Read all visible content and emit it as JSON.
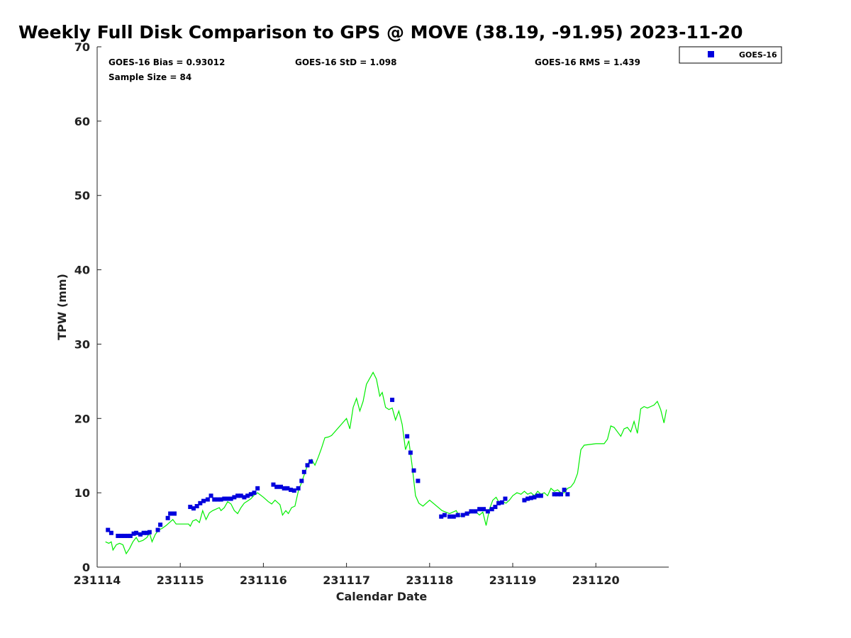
{
  "chart_data": {
    "type": "scatter",
    "title": "Weekly Full Disk Comparison to GPS @ MOVE (38.19, -91.95) 2023-11-20",
    "xlabel": "Calendar Date",
    "ylabel": "TPW (mm)",
    "xlim": [
      231114,
      231120.85
    ],
    "ylim": [
      0,
      70
    ],
    "x_ticks": [
      231114,
      231115,
      231116,
      231117,
      231118,
      231119,
      231120
    ],
    "x_tick_labels": [
      "231114",
      "231115",
      "231116",
      "231117",
      "231118",
      "231119",
      "231120"
    ],
    "y_ticks": [
      0,
      10,
      20,
      30,
      40,
      50,
      60,
      70
    ],
    "y_tick_labels": [
      "0",
      "10",
      "20",
      "30",
      "40",
      "50",
      "60",
      "70"
    ],
    "stats": {
      "bias": "GOES-16 Bias = 0.93012",
      "std": "GOES-16 StD = 1.098",
      "rms": "GOES-16 RMS = 1.439",
      "sample": "Sample Size = 84"
    },
    "legend_position": "top-right",
    "colors": {
      "goes16": "#0000dd",
      "gps": "#00ee00"
    },
    "series": [
      {
        "name": "GOES-16",
        "marker": "square",
        "color": "#0000dd",
        "points": [
          [
            231114.13,
            5.0
          ],
          [
            231114.17,
            4.6
          ],
          [
            231114.25,
            4.2
          ],
          [
            231114.29,
            4.2
          ],
          [
            231114.33,
            4.2
          ],
          [
            231114.37,
            4.2
          ],
          [
            231114.4,
            4.2
          ],
          [
            231114.44,
            4.5
          ],
          [
            231114.47,
            4.6
          ],
          [
            231114.52,
            4.4
          ],
          [
            231114.56,
            4.6
          ],
          [
            231114.6,
            4.6
          ],
          [
            231114.63,
            4.7
          ],
          [
            231114.73,
            5.0
          ],
          [
            231114.76,
            5.7
          ],
          [
            231114.85,
            6.6
          ],
          [
            231114.88,
            7.2
          ],
          [
            231114.93,
            7.2
          ],
          [
            231115.12,
            8.1
          ],
          [
            231115.16,
            7.9
          ],
          [
            231115.2,
            8.2
          ],
          [
            231115.24,
            8.6
          ],
          [
            231115.28,
            8.9
          ],
          [
            231115.33,
            9.1
          ],
          [
            231115.37,
            9.6
          ],
          [
            231115.41,
            9.1
          ],
          [
            231115.45,
            9.1
          ],
          [
            231115.49,
            9.1
          ],
          [
            231115.53,
            9.2
          ],
          [
            231115.57,
            9.2
          ],
          [
            231115.61,
            9.2
          ],
          [
            231115.65,
            9.4
          ],
          [
            231115.69,
            9.6
          ],
          [
            231115.73,
            9.6
          ],
          [
            231115.77,
            9.4
          ],
          [
            231115.81,
            9.6
          ],
          [
            231115.85,
            9.8
          ],
          [
            231115.89,
            10.0
          ],
          [
            231115.93,
            10.6
          ],
          [
            231116.12,
            11.1
          ],
          [
            231116.16,
            10.8
          ],
          [
            231116.21,
            10.8
          ],
          [
            231116.25,
            10.6
          ],
          [
            231116.29,
            10.6
          ],
          [
            231116.33,
            10.4
          ],
          [
            231116.37,
            10.3
          ],
          [
            231116.42,
            10.6
          ],
          [
            231116.46,
            11.6
          ],
          [
            231116.49,
            12.8
          ],
          [
            231116.53,
            13.7
          ],
          [
            231116.57,
            14.2
          ],
          [
            231117.55,
            22.5
          ],
          [
            231117.73,
            17.6
          ],
          [
            231117.77,
            15.4
          ],
          [
            231117.81,
            13.0
          ],
          [
            231117.86,
            11.6
          ],
          [
            231118.14,
            6.8
          ],
          [
            231118.18,
            7.0
          ],
          [
            231118.24,
            6.8
          ],
          [
            231118.29,
            6.8
          ],
          [
            231118.34,
            7.0
          ],
          [
            231118.4,
            7.0
          ],
          [
            231118.45,
            7.2
          ],
          [
            231118.5,
            7.5
          ],
          [
            231118.55,
            7.5
          ],
          [
            231118.6,
            7.8
          ],
          [
            231118.65,
            7.8
          ],
          [
            231118.7,
            7.5
          ],
          [
            231118.75,
            7.8
          ],
          [
            231118.79,
            8.1
          ],
          [
            231118.83,
            8.6
          ],
          [
            231118.87,
            8.7
          ],
          [
            231118.91,
            9.2
          ],
          [
            231119.14,
            9.0
          ],
          [
            231119.18,
            9.2
          ],
          [
            231119.22,
            9.3
          ],
          [
            231119.26,
            9.4
          ],
          [
            231119.3,
            9.6
          ],
          [
            231119.34,
            9.6
          ],
          [
            231119.5,
            9.8
          ],
          [
            231119.54,
            9.8
          ],
          [
            231119.58,
            9.8
          ],
          [
            231119.62,
            10.4
          ],
          [
            231119.66,
            9.8
          ]
        ]
      },
      {
        "marker": "line",
        "color": "#00ee00",
        "points": [
          [
            231114.1,
            3.4
          ],
          [
            231114.14,
            3.2
          ],
          [
            231114.17,
            3.4
          ],
          [
            231114.19,
            2.3
          ],
          [
            231114.23,
            3.0
          ],
          [
            231114.27,
            3.2
          ],
          [
            231114.31,
            3.0
          ],
          [
            231114.35,
            1.8
          ],
          [
            231114.39,
            2.5
          ],
          [
            231114.43,
            3.4
          ],
          [
            231114.47,
            4.0
          ],
          [
            231114.5,
            3.4
          ],
          [
            231114.55,
            3.6
          ],
          [
            231114.6,
            4.0
          ],
          [
            231114.63,
            4.6
          ],
          [
            231114.66,
            3.4
          ],
          [
            231114.7,
            4.4
          ],
          [
            231114.74,
            5.0
          ],
          [
            231114.78,
            5.2
          ],
          [
            231114.83,
            5.6
          ],
          [
            231114.87,
            6.0
          ],
          [
            231114.91,
            6.4
          ],
          [
            231114.95,
            5.8
          ],
          [
            231115.0,
            5.8
          ],
          [
            231115.06,
            5.8
          ],
          [
            231115.1,
            5.8
          ],
          [
            231115.12,
            5.5
          ],
          [
            231115.15,
            6.2
          ],
          [
            231115.19,
            6.4
          ],
          [
            231115.23,
            6.0
          ],
          [
            231115.27,
            7.6
          ],
          [
            231115.31,
            6.4
          ],
          [
            231115.35,
            7.3
          ],
          [
            231115.39,
            7.6
          ],
          [
            231115.43,
            7.8
          ],
          [
            231115.47,
            8.0
          ],
          [
            231115.49,
            7.6
          ],
          [
            231115.53,
            8.0
          ],
          [
            231115.57,
            8.8
          ],
          [
            231115.61,
            8.5
          ],
          [
            231115.65,
            7.6
          ],
          [
            231115.69,
            7.2
          ],
          [
            231115.73,
            8.0
          ],
          [
            231115.77,
            8.6
          ],
          [
            231115.81,
            8.9
          ],
          [
            231115.85,
            9.2
          ],
          [
            231115.89,
            9.7
          ],
          [
            231115.93,
            10.0
          ],
          [
            231116.0,
            9.4
          ],
          [
            231116.06,
            8.8
          ],
          [
            231116.1,
            8.5
          ],
          [
            231116.14,
            9.0
          ],
          [
            231116.2,
            8.4
          ],
          [
            231116.23,
            7.0
          ],
          [
            231116.27,
            7.6
          ],
          [
            231116.3,
            7.2
          ],
          [
            231116.34,
            8.0
          ],
          [
            231116.38,
            8.2
          ],
          [
            231116.42,
            10.2
          ],
          [
            231116.46,
            11.4
          ],
          [
            231116.5,
            12.7
          ],
          [
            231116.54,
            14.0
          ],
          [
            231116.58,
            14.5
          ],
          [
            231116.62,
            13.7
          ],
          [
            231116.66,
            14.8
          ],
          [
            231116.7,
            16.0
          ],
          [
            231116.74,
            17.4
          ],
          [
            231116.78,
            17.5
          ],
          [
            231116.82,
            17.7
          ],
          [
            231117.0,
            20.0
          ],
          [
            231117.04,
            18.6
          ],
          [
            231117.08,
            21.5
          ],
          [
            231117.12,
            22.7
          ],
          [
            231117.16,
            21.0
          ],
          [
            231117.2,
            22.3
          ],
          [
            231117.24,
            24.6
          ],
          [
            231117.27,
            25.2
          ],
          [
            231117.32,
            26.2
          ],
          [
            231117.36,
            25.3
          ],
          [
            231117.4,
            23.0
          ],
          [
            231117.43,
            23.5
          ],
          [
            231117.47,
            21.5
          ],
          [
            231117.51,
            21.2
          ],
          [
            231117.55,
            21.4
          ],
          [
            231117.59,
            19.8
          ],
          [
            231117.63,
            21.0
          ],
          [
            231117.67,
            19.2
          ],
          [
            231117.71,
            15.8
          ],
          [
            231117.75,
            17.0
          ],
          [
            231117.79,
            13.6
          ],
          [
            231117.83,
            9.6
          ],
          [
            231117.87,
            8.6
          ],
          [
            231117.92,
            8.2
          ],
          [
            231118.0,
            9.0
          ],
          [
            231118.15,
            7.6
          ],
          [
            231118.24,
            7.2
          ],
          [
            231118.32,
            7.6
          ],
          [
            231118.36,
            6.8
          ],
          [
            231118.4,
            7.0
          ],
          [
            231118.44,
            7.4
          ],
          [
            231118.48,
            7.2
          ],
          [
            231118.52,
            7.6
          ],
          [
            231118.56,
            7.4
          ],
          [
            231118.6,
            7.0
          ],
          [
            231118.64,
            7.4
          ],
          [
            231118.68,
            5.6
          ],
          [
            231118.72,
            7.8
          ],
          [
            231118.76,
            9.0
          ],
          [
            231118.8,
            9.4
          ],
          [
            231118.84,
            8.6
          ],
          [
            231118.88,
            8.8
          ],
          [
            231118.92,
            8.6
          ],
          [
            231118.96,
            9.0
          ],
          [
            231119.0,
            9.6
          ],
          [
            231119.05,
            10.0
          ],
          [
            231119.1,
            9.8
          ],
          [
            231119.14,
            10.2
          ],
          [
            231119.18,
            9.8
          ],
          [
            231119.22,
            10.0
          ],
          [
            231119.26,
            9.6
          ],
          [
            231119.3,
            10.2
          ],
          [
            231119.34,
            9.8
          ],
          [
            231119.38,
            10.0
          ],
          [
            231119.42,
            9.6
          ],
          [
            231119.46,
            10.6
          ],
          [
            231119.5,
            10.2
          ],
          [
            231119.54,
            10.4
          ],
          [
            231119.58,
            10.0
          ],
          [
            231119.62,
            10.0
          ],
          [
            231119.66,
            10.6
          ],
          [
            231119.7,
            10.8
          ],
          [
            231119.74,
            11.4
          ],
          [
            231119.78,
            12.6
          ],
          [
            231119.82,
            15.8
          ],
          [
            231119.86,
            16.4
          ],
          [
            231120.0,
            16.6
          ],
          [
            231120.1,
            16.6
          ],
          [
            231120.14,
            17.2
          ],
          [
            231120.18,
            19.0
          ],
          [
            231120.22,
            18.8
          ],
          [
            231120.26,
            18.2
          ],
          [
            231120.3,
            17.6
          ],
          [
            231120.34,
            18.6
          ],
          [
            231120.38,
            18.8
          ],
          [
            231120.42,
            18.2
          ],
          [
            231120.46,
            19.6
          ],
          [
            231120.5,
            18.0
          ],
          [
            231120.54,
            21.3
          ],
          [
            231120.58,
            21.6
          ],
          [
            231120.62,
            21.4
          ],
          [
            231120.66,
            21.6
          ],
          [
            231120.7,
            21.8
          ],
          [
            231120.74,
            22.3
          ],
          [
            231120.78,
            21.2
          ],
          [
            231120.82,
            19.4
          ],
          [
            231120.85,
            21.2
          ]
        ]
      }
    ],
    "legend": [
      "GOES-16"
    ]
  }
}
